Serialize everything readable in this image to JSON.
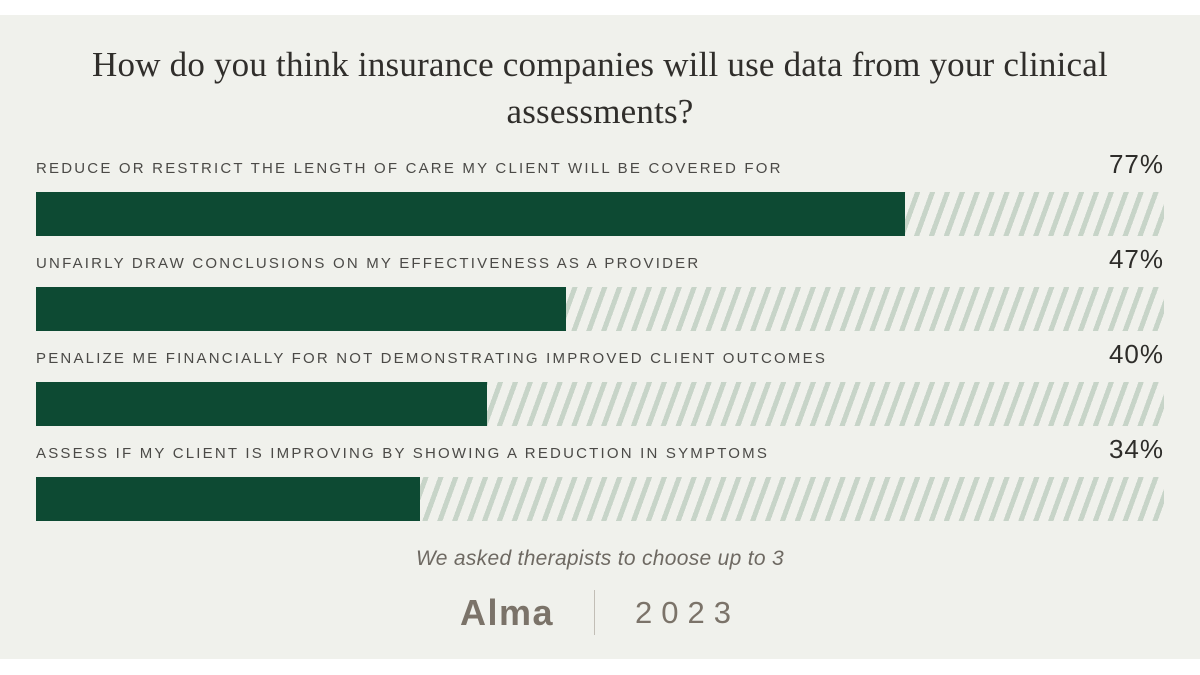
{
  "page": {
    "background": "#ffffff",
    "card_background": "#f0f1ec"
  },
  "chart_data": {
    "type": "bar",
    "orientation": "horizontal",
    "title": "How do you think insurance companies will use data from your clinical assessments?",
    "categories": [
      "REDUCE OR RESTRICT THE LENGTH OF CARE MY CLIENT WILL BE COVERED FOR",
      "UNFAIRLY DRAW CONCLUSIONS ON MY EFFECTIVENESS AS A PROVIDER",
      "PENALIZE ME FINANCIALLY FOR NOT DEMONSTRATING IMPROVED CLIENT OUTCOMES",
      "ASSESS IF MY CLIENT IS IMPROVING BY SHOWING A REDUCTION IN SYMPTOMS"
    ],
    "values": [
      77,
      47,
      40,
      34
    ],
    "value_labels": [
      "77%",
      "47%",
      "40%",
      "34%"
    ],
    "xlim": [
      0,
      100
    ],
    "grid": false,
    "legend_position": "none",
    "bar_color": "#0d4a33",
    "hatch_color": "#c7d4c8",
    "note": "We asked therapists to choose up to 3"
  },
  "footer": {
    "note": "We asked therapists to choose up to 3",
    "brand": "Alma",
    "year": "2023"
  }
}
